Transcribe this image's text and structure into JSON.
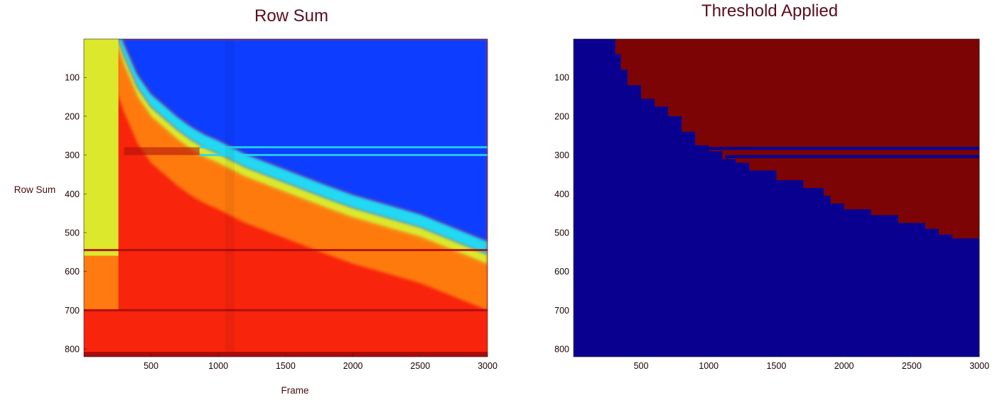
{
  "colors": {
    "jet_blue": "#0d3cff",
    "jet_cyan": "#22d8f2",
    "jet_yellow": "#dce82c",
    "jet_orange": "#ff7a10",
    "jet_red": "#f8240c",
    "jet_darkred": "#a80c0c",
    "threshold_low": "#0a0090",
    "threshold_high": "#7c0404",
    "title_color": "#5a0c1e"
  },
  "chart_data": [
    {
      "type": "heatmap",
      "title": "Row Sum",
      "xlabel": "Frame",
      "ylabel": "Row Sum",
      "xlim": [
        1,
        3000
      ],
      "ylim": [
        1,
        820
      ],
      "y_reversed": true,
      "x_ticks": [
        500,
        1000,
        1500,
        2000,
        2500,
        3000
      ],
      "y_ticks": [
        100,
        200,
        300,
        400,
        500,
        600,
        700,
        800
      ],
      "colormap": "jet",
      "grid": false,
      "regions": {
        "boundary_curve": {
          "description_frames": [
            250,
            300,
            400,
            500,
            600,
            700,
            800,
            900,
            1000,
            1200,
            1500,
            1800,
            2000,
            2500,
            3000
          ],
          "rows": [
            1,
            50,
            130,
            180,
            210,
            240,
            265,
            285,
            300,
            335,
            375,
            415,
            440,
            490,
            560
          ]
        },
        "left_band_frame_end": 300,
        "horizontal_streak_rows": [
          280,
          300,
          545,
          700,
          810
        ]
      }
    },
    {
      "type": "heatmap",
      "title": "Threshold Applied",
      "xlabel": "",
      "ylabel": "",
      "xlim": [
        1,
        3000
      ],
      "ylim": [
        1,
        820
      ],
      "y_reversed": true,
      "x_ticks": [
        500,
        1000,
        1500,
        2000,
        2500,
        3000
      ],
      "y_ticks": [
        100,
        200,
        300,
        400,
        500,
        600,
        700,
        800
      ],
      "colormap": "binary",
      "grid": false,
      "threshold_boundary": {
        "frames": [
          280,
          310,
          350,
          400,
          500,
          600,
          700,
          800,
          900,
          1000,
          1100,
          1200,
          1300,
          1500,
          1700,
          1850,
          1900,
          2000,
          2200,
          2400,
          2600,
          2700,
          2800,
          3000
        ],
        "rows": [
          1,
          40,
          80,
          120,
          155,
          175,
          200,
          240,
          275,
          290,
          310,
          320,
          340,
          365,
          385,
          405,
          425,
          440,
          455,
          475,
          490,
          505,
          515,
          525
        ]
      },
      "horizontal_bands": [
        {
          "frame_start": 880,
          "frame_end": 3000,
          "row_start": 279,
          "row_end": 287
        },
        {
          "frame_start": 1120,
          "frame_end": 3000,
          "row_start": 300,
          "row_end": 308
        }
      ]
    }
  ]
}
